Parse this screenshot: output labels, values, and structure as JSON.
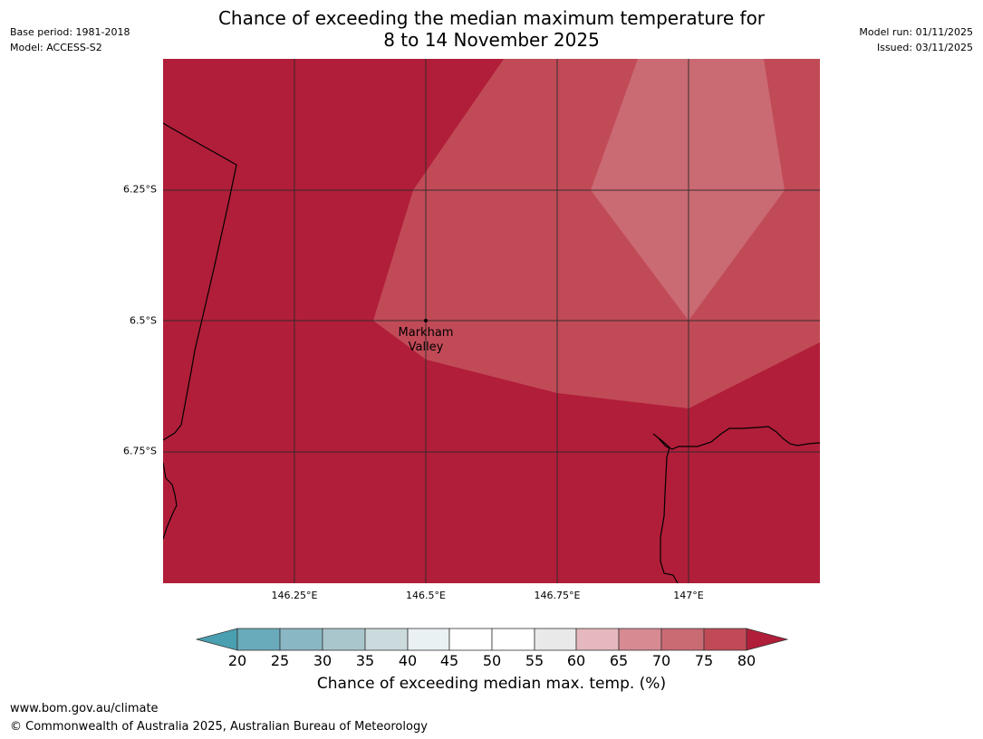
{
  "header": {
    "base_period": "Base period: 1981-2018",
    "model": "Model: ACCESS-S2",
    "model_run": "Model run: 01/11/2025",
    "issued": "Issued: 03/11/2025"
  },
  "title": {
    "line1": "Chance of exceeding the median maximum temperature for",
    "line2": "8 to 14 November 2025"
  },
  "map": {
    "extent": {
      "lon_min": 146.0,
      "lon_max": 147.25,
      "lat_min": -7.0,
      "lat_max": -6.0
    },
    "lat_labels": [
      {
        "value": -6.25,
        "text": "6.25°S"
      },
      {
        "value": -6.5,
        "text": "6.5°S"
      },
      {
        "value": -6.75,
        "text": "6.75°S"
      }
    ],
    "lon_labels": [
      {
        "value": 146.25,
        "text": "146.25°E"
      },
      {
        "value": 146.5,
        "text": "146.5°E"
      },
      {
        "value": 146.75,
        "text": "146.75°E"
      },
      {
        "value": 147.0,
        "text": "147°E"
      }
    ],
    "place": {
      "name_line1": "Markham",
      "name_line2": "Valley",
      "lon": 146.5,
      "lat": -6.5
    },
    "colors": {
      "band_80": "#b11e39",
      "band_75_80": "#c14a57",
      "band_70_75": "#ca6a73",
      "grid": "#2a2a2a",
      "coast": "#000000"
    }
  },
  "colorbar": {
    "ticks": [
      "20",
      "25",
      "30",
      "35",
      "40",
      "45",
      "50",
      "55",
      "60",
      "65",
      "70",
      "75",
      "80"
    ],
    "colors": [
      "#4a9fb0",
      "#6aabbb",
      "#8ab7c4",
      "#a9c6cc",
      "#cbdadd",
      "#e9f1f3",
      "#ffffff",
      "#ffffff",
      "#e9e9e9",
      "#e4b8bc",
      "#d78a92",
      "#ca6a73",
      "#c14a57",
      "#b11e39"
    ],
    "label": "Chance of exceeding median max. temp. (%)"
  },
  "footer": {
    "url": "www.bom.gov.au/climate",
    "copyright": "© Commonwealth of Australia 2025, Australian Bureau of Meteorology"
  }
}
